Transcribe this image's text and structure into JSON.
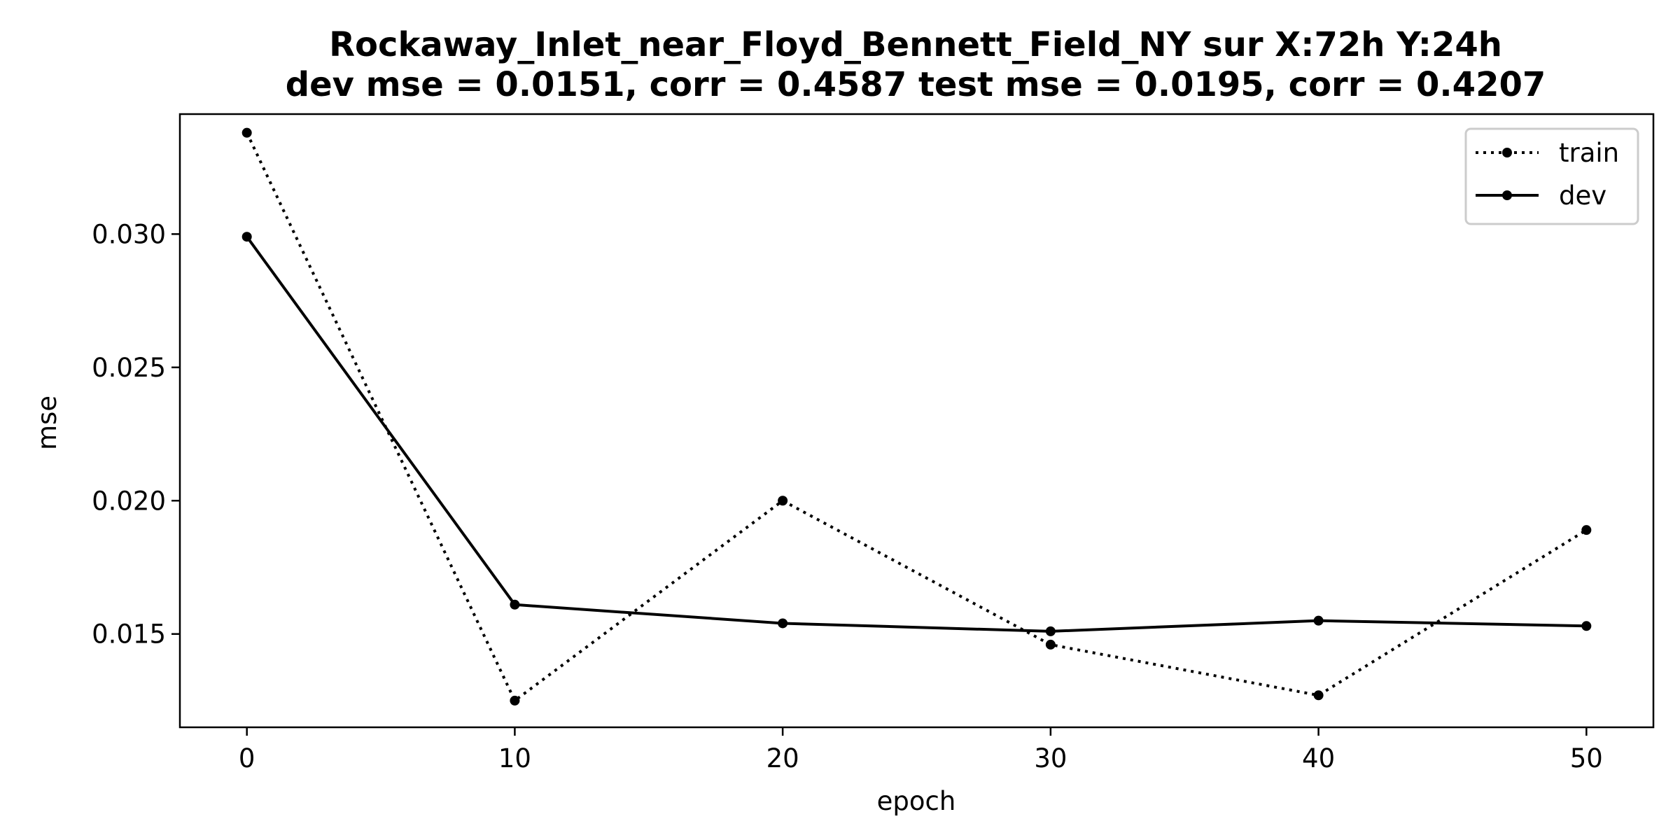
{
  "chart_data": {
    "type": "line",
    "title": "Rockaway_Inlet_near_Floyd_Bennett_Field_NY   sur   X:72h   Y:24h",
    "subtitle": "dev mse = 0.0151, corr = 0.4587   test mse = 0.0195, corr = 0.4207",
    "xlabel": "epoch",
    "ylabel": "mse",
    "x": [
      0,
      10,
      20,
      30,
      40,
      50
    ],
    "xlim": [
      -2.5,
      52.5
    ],
    "ylim": [
      0.0115,
      0.0345
    ],
    "xticks": [
      0,
      10,
      20,
      30,
      40,
      50
    ],
    "xtick_labels": [
      "0",
      "10",
      "20",
      "30",
      "40",
      "50"
    ],
    "yticks": [
      0.015,
      0.02,
      0.025,
      0.03
    ],
    "ytick_labels": [
      "0.015",
      "0.020",
      "0.025",
      "0.030"
    ],
    "grid": false,
    "legend_position": "top-right",
    "series": [
      {
        "name": "train",
        "style": "dotted",
        "color": "#000000",
        "values": [
          0.0338,
          0.0125,
          0.02,
          0.0146,
          0.0127,
          0.0189
        ]
      },
      {
        "name": "dev",
        "style": "solid",
        "color": "#000000",
        "values": [
          0.0299,
          0.0161,
          0.0154,
          0.0151,
          0.0155,
          0.0153
        ]
      }
    ]
  }
}
